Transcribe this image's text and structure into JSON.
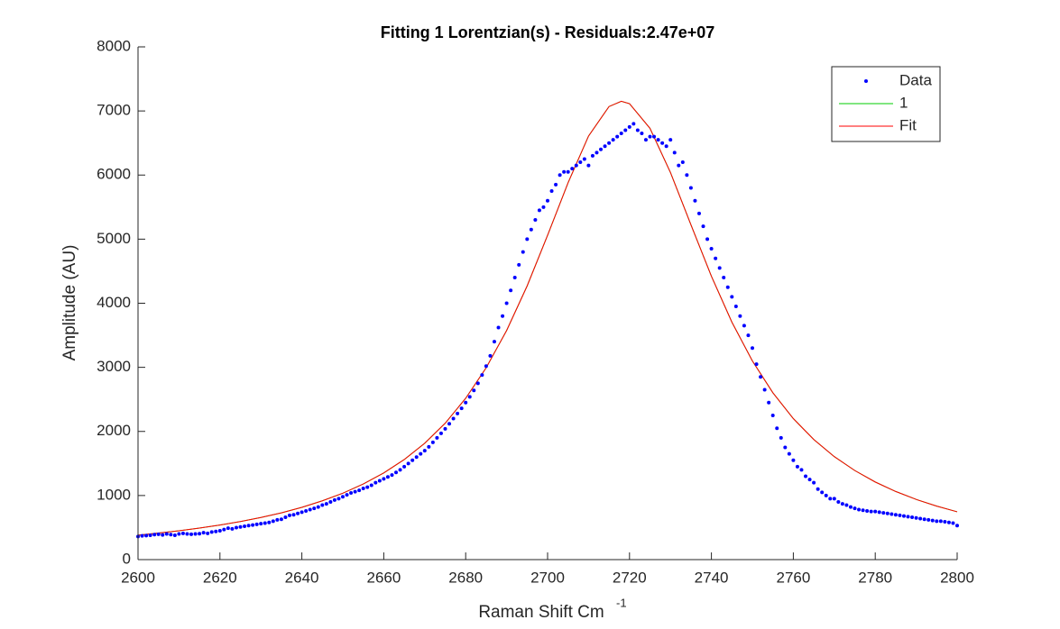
{
  "chart_data": {
    "type": "line",
    "title": "Fitting 1 Lorentzian(s) - Residuals:2.47e+07",
    "x_label": "Raman Shift Cm",
    "x_label_superscript": "-1",
    "y_label": "Amplitude (AU)",
    "xlim": [
      2600,
      2800
    ],
    "ylim": [
      0,
      8000
    ],
    "xticks": [
      2600,
      2620,
      2640,
      2660,
      2680,
      2700,
      2720,
      2740,
      2760,
      2780,
      2800
    ],
    "yticks": [
      0,
      1000,
      2000,
      3000,
      4000,
      5000,
      6000,
      7000,
      8000
    ],
    "legend_position": "northeast",
    "series": [
      {
        "name": "Data",
        "color": "#0000ff",
        "mode": "markers",
        "x": [
          2600,
          2601,
          2602,
          2603,
          2604,
          2605,
          2606,
          2607,
          2608,
          2609,
          2610,
          2611,
          2612,
          2613,
          2614,
          2615,
          2616,
          2617,
          2618,
          2619,
          2620,
          2621,
          2622,
          2623,
          2624,
          2625,
          2626,
          2627,
          2628,
          2629,
          2630,
          2631,
          2632,
          2633,
          2634,
          2635,
          2636,
          2637,
          2638,
          2639,
          2640,
          2641,
          2642,
          2643,
          2644,
          2645,
          2646,
          2647,
          2648,
          2649,
          2650,
          2651,
          2652,
          2653,
          2654,
          2655,
          2656,
          2657,
          2658,
          2659,
          2660,
          2661,
          2662,
          2663,
          2664,
          2665,
          2666,
          2667,
          2668,
          2669,
          2670,
          2671,
          2672,
          2673,
          2674,
          2675,
          2676,
          2677,
          2678,
          2679,
          2680,
          2681,
          2682,
          2683,
          2684,
          2685,
          2686,
          2687,
          2688,
          2689,
          2690,
          2691,
          2692,
          2693,
          2694,
          2695,
          2696,
          2697,
          2698,
          2699,
          2700,
          2701,
          2702,
          2703,
          2704,
          2705,
          2706,
          2707,
          2708,
          2709,
          2710,
          2711,
          2712,
          2713,
          2714,
          2715,
          2716,
          2717,
          2718,
          2719,
          2720,
          2721,
          2722,
          2723,
          2724,
          2725,
          2726,
          2727,
          2728,
          2729,
          2730,
          2731,
          2732,
          2733,
          2734,
          2735,
          2736,
          2737,
          2738,
          2739,
          2740,
          2741,
          2742,
          2743,
          2744,
          2745,
          2746,
          2747,
          2748,
          2749,
          2750,
          2751,
          2752,
          2753,
          2754,
          2755,
          2756,
          2757,
          2758,
          2759,
          2760,
          2761,
          2762,
          2763,
          2764,
          2765,
          2766,
          2767,
          2768,
          2769,
          2770,
          2771,
          2772,
          2773,
          2774,
          2775,
          2776,
          2777,
          2778,
          2779,
          2780,
          2781,
          2782,
          2783,
          2784,
          2785,
          2786,
          2787,
          2788,
          2789,
          2790,
          2791,
          2792,
          2793,
          2794,
          2795,
          2796,
          2797,
          2798,
          2799,
          2800
        ],
        "values": [
          360,
          370,
          375,
          380,
          390,
          395,
          385,
          400,
          390,
          380,
          400,
          410,
          400,
          395,
          400,
          405,
          420,
          410,
          430,
          440,
          450,
          470,
          490,
          480,
          500,
          510,
          520,
          530,
          540,
          550,
          560,
          570,
          580,
          600,
          620,
          630,
          660,
          690,
          700,
          720,
          740,
          760,
          780,
          800,
          820,
          850,
          870,
          900,
          930,
          950,
          980,
          1010,
          1040,
          1060,
          1080,
          1110,
          1130,
          1160,
          1200,
          1230,
          1260,
          1290,
          1320,
          1360,
          1400,
          1450,
          1500,
          1550,
          1600,
          1650,
          1700,
          1760,
          1830,
          1900,
          1970,
          2040,
          2120,
          2200,
          2280,
          2360,
          2450,
          2540,
          2640,
          2750,
          2880,
          3020,
          3180,
          3400,
          3620,
          3800,
          4000,
          4200,
          4400,
          4600,
          4800,
          5000,
          5150,
          5300,
          5450,
          5500,
          5600,
          5750,
          5850,
          6000,
          6050,
          6050,
          6100,
          6150,
          6200,
          6250,
          6150,
          6300,
          6350,
          6400,
          6450,
          6500,
          6550,
          6600,
          6650,
          6700,
          6750,
          6800,
          6700,
          6650,
          6550,
          6600,
          6600,
          6550,
          6500,
          6450,
          6550,
          6350,
          6150,
          6200,
          6000,
          5800,
          5600,
          5400,
          5200,
          5000,
          4850,
          4700,
          4550,
          4400,
          4250,
          4100,
          3950,
          3800,
          3650,
          3500,
          3300,
          3050,
          2850,
          2650,
          2450,
          2250,
          2050,
          1900,
          1750,
          1650,
          1550,
          1450,
          1400,
          1300,
          1250,
          1200,
          1100,
          1050,
          1000,
          950,
          950,
          900,
          870,
          850,
          820,
          800,
          780,
          770,
          760,
          750,
          750,
          740,
          730,
          720,
          710,
          700,
          690,
          680,
          670,
          660,
          650,
          640,
          630,
          620,
          610,
          600,
          600,
          590,
          580,
          570,
          530
        ]
      },
      {
        "name": "1",
        "color": "#00cc00",
        "mode": "line",
        "x": [
          2600,
          2605,
          2610,
          2615,
          2620,
          2625,
          2630,
          2635,
          2640,
          2645,
          2650,
          2655,
          2660,
          2665,
          2670,
          2675,
          2680,
          2685,
          2690,
          2695,
          2700,
          2705,
          2710,
          2715,
          2718,
          2720,
          2725,
          2730,
          2735,
          2740,
          2745,
          2750,
          2755,
          2760,
          2765,
          2770,
          2775,
          2780,
          2785,
          2790,
          2795,
          2800
        ],
        "values": [
          381,
          414,
          450,
          492,
          540,
          594,
          657,
          730,
          816,
          917,
          1036,
          1180,
          1352,
          1561,
          1815,
          2128,
          2517,
          2993,
          3575,
          4269,
          5060,
          5880,
          6609,
          7069,
          7150,
          7114,
          6729,
          6040,
          5224,
          4421,
          3705,
          3100,
          2604,
          2200,
          1873,
          1607,
          1390,
          1211,
          1063,
          939,
          835,
          746
        ]
      },
      {
        "name": "Fit",
        "color": "#ff0000",
        "mode": "line",
        "x": [
          2600,
          2605,
          2610,
          2615,
          2620,
          2625,
          2630,
          2635,
          2640,
          2645,
          2650,
          2655,
          2660,
          2665,
          2670,
          2675,
          2680,
          2685,
          2690,
          2695,
          2700,
          2705,
          2710,
          2715,
          2718,
          2720,
          2725,
          2730,
          2735,
          2740,
          2745,
          2750,
          2755,
          2760,
          2765,
          2770,
          2775,
          2780,
          2785,
          2790,
          2795,
          2800
        ],
        "values": [
          381,
          414,
          450,
          492,
          540,
          594,
          657,
          730,
          816,
          917,
          1036,
          1180,
          1352,
          1561,
          1815,
          2128,
          2517,
          2993,
          3575,
          4269,
          5060,
          5880,
          6609,
          7069,
          7150,
          7114,
          6729,
          6040,
          5224,
          4421,
          3705,
          3100,
          2604,
          2200,
          1873,
          1607,
          1390,
          1211,
          1063,
          939,
          835,
          746
        ]
      }
    ]
  }
}
